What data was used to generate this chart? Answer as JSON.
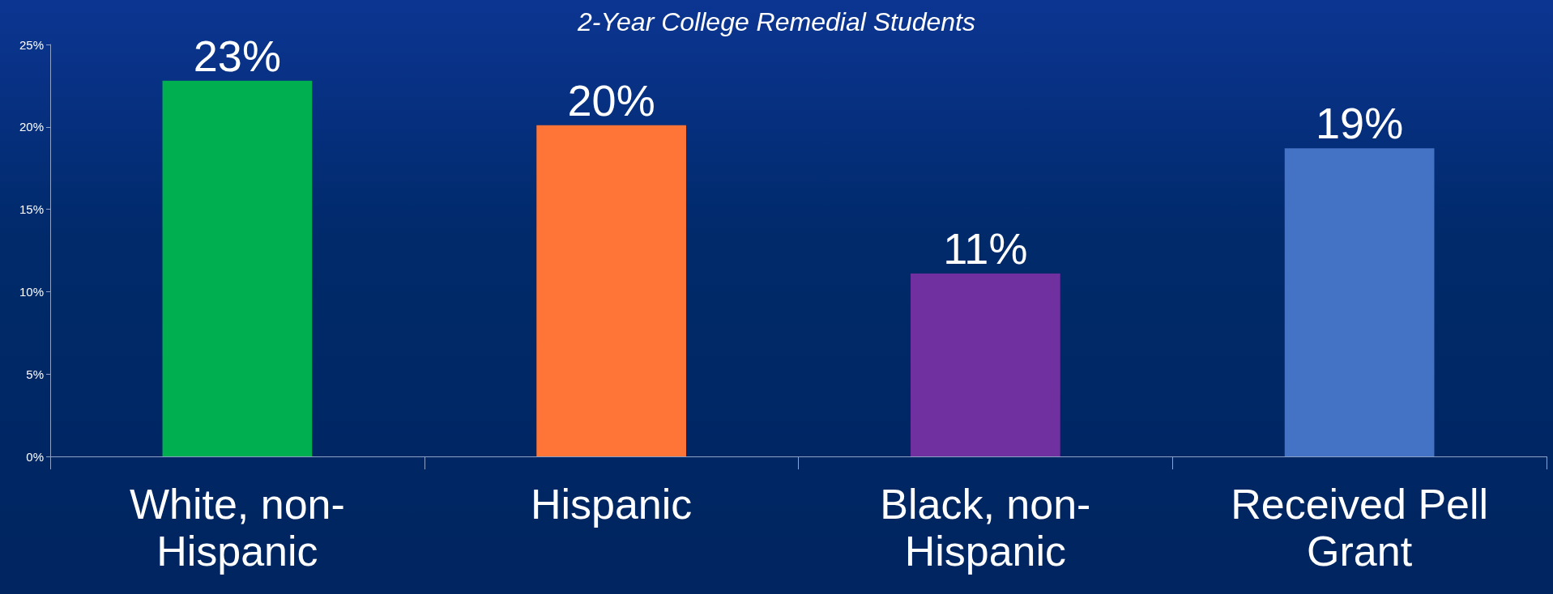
{
  "chart_data": {
    "type": "bar",
    "title": "2-Year College Remedial Students",
    "categories": [
      "White, non-Hispanic",
      "Hispanic",
      "Black, non-Hispanic",
      "Received Pell Grant"
    ],
    "values": [
      22.8,
      20.1,
      11.1,
      18.7
    ],
    "colors": [
      "#00b050",
      "#ff7538",
      "#7030a0",
      "#4472c4"
    ],
    "value_labels": [
      "23%",
      "20%",
      "11%",
      "19%"
    ],
    "ylim": [
      0,
      25
    ],
    "yticks": [
      {
        "value": 0,
        "label": "0%"
      },
      {
        "value": 5,
        "label": "5%"
      },
      {
        "value": 10,
        "label": "10%"
      },
      {
        "value": 15,
        "label": "15%"
      },
      {
        "value": 20,
        "label": "20%"
      },
      {
        "value": 25,
        "label": "25%"
      }
    ],
    "grid": false
  }
}
